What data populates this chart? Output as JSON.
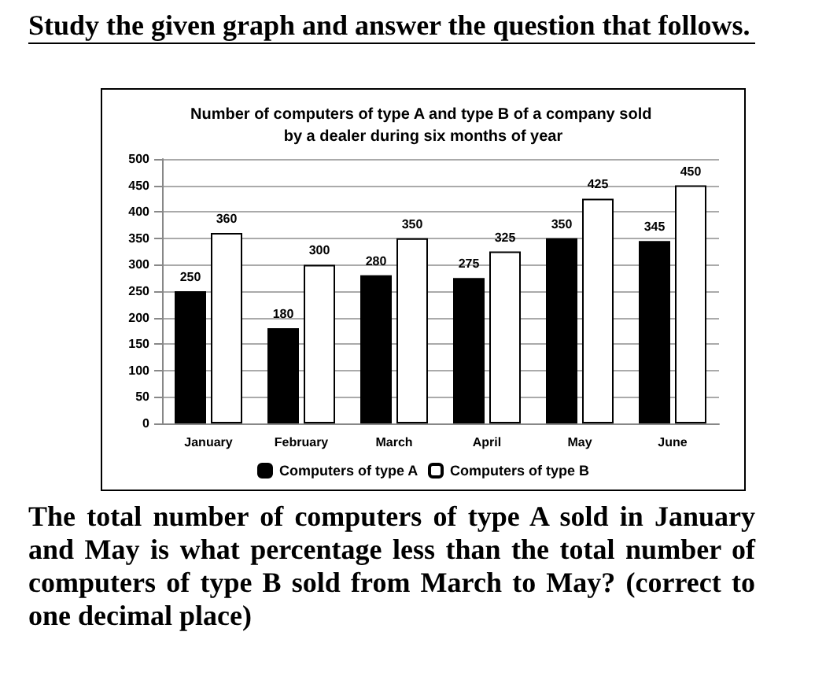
{
  "chart_data": {
    "type": "bar",
    "title": "Number of computers of type A and type B of a company sold by a dealer during six months of year",
    "annotations": [
      "Study the given graph and answer the question that follows.",
      "The total number of computers of type A sold in January and May is what percentage less than the total number of computers of type B sold from March to May? (correct to one decimal place)"
    ],
    "categories": [
      "January",
      "February",
      "March",
      "April",
      "May",
      "June"
    ],
    "series": [
      {
        "name": "Computers of type A",
        "color": "#000000",
        "values": [
          250,
          180,
          280,
          275,
          350,
          345
        ]
      },
      {
        "name": "Computers of type B",
        "color": "#ffffff",
        "values": [
          360,
          300,
          350,
          325,
          425,
          450
        ]
      }
    ],
    "ylim": [
      0,
      500
    ],
    "yticks": [
      0,
      50,
      100,
      150,
      200,
      250,
      300,
      350,
      400,
      450,
      500
    ],
    "grid": "y",
    "legend": "bottom",
    "data_labels": true
  }
}
